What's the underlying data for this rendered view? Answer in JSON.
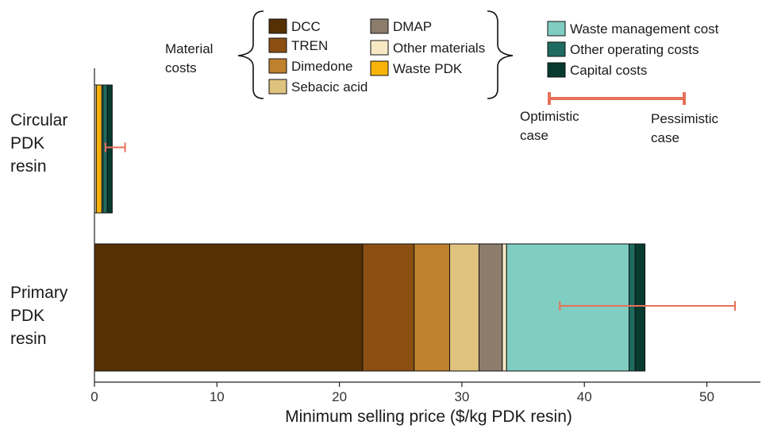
{
  "chart_data": {
    "type": "bar",
    "orientation": "horizontal",
    "stacked": true,
    "xlabel": "Minimum selling price ($/kg PDK resin)",
    "xlim": [
      0,
      55
    ],
    "xticks": [
      0,
      10,
      20,
      30,
      40,
      50
    ],
    "categories": [
      "Circular PDK resin",
      "Primary PDK resin"
    ],
    "category_lines": [
      [
        "Circular",
        "PDK",
        "resin"
      ],
      [
        "Primary",
        "PDK",
        "resin"
      ]
    ],
    "series": [
      {
        "name": "DCC",
        "color": "#553003",
        "values": [
          0,
          21.9
        ]
      },
      {
        "name": "TREN",
        "color": "#8b4f12",
        "values": [
          0,
          4.2
        ]
      },
      {
        "name": "Dimedone",
        "color": "#bf812d",
        "values": [
          0,
          2.9
        ]
      },
      {
        "name": "Sebacic acid",
        "color": "#dfc27d",
        "values": [
          0,
          2.4
        ]
      },
      {
        "name": "DMAP",
        "color": "#8c7c6c",
        "values": [
          0,
          1.9
        ]
      },
      {
        "name": "Other materials",
        "color": "#f6e8c3",
        "values": [
          0.15,
          0.35
        ]
      },
      {
        "name": "Waste PDK",
        "color": "#f8b30b",
        "values": [
          0.45,
          0
        ]
      },
      {
        "name": "Waste management cost",
        "color": "#80cdc1",
        "values": [
          0.1,
          10.0
        ]
      },
      {
        "name": "Other operating costs",
        "color": "#1f6b5f",
        "values": [
          0.35,
          0.5
        ]
      },
      {
        "name": "Capital costs",
        "color": "#073b30",
        "values": [
          0.4,
          0.8
        ]
      }
    ],
    "error_bars": [
      {
        "category": "Circular PDK resin",
        "low": 0.9,
        "high": 2.5
      },
      {
        "category": "Primary PDK resin",
        "low": 38.0,
        "high": 52.3
      }
    ],
    "legend": {
      "groups": [
        {
          "label": "Material costs",
          "lines": [
            "Material",
            "costs"
          ],
          "items": [
            "DCC",
            "TREN",
            "Dimedone",
            "Sebacic acid",
            "DMAP",
            "Other materials",
            "Waste PDK"
          ]
        },
        {
          "label": "",
          "items": [
            "Waste management cost",
            "Other operating costs",
            "Capital costs"
          ]
        }
      ],
      "error_bar_key": {
        "color": "#e8705a",
        "low_label": "Optimistic case",
        "low_lines": [
          "Optimistic",
          "case"
        ],
        "high_label": "Pessimistic case",
        "high_lines": [
          "Pessimistic",
          "case"
        ]
      }
    },
    "grid": false
  }
}
